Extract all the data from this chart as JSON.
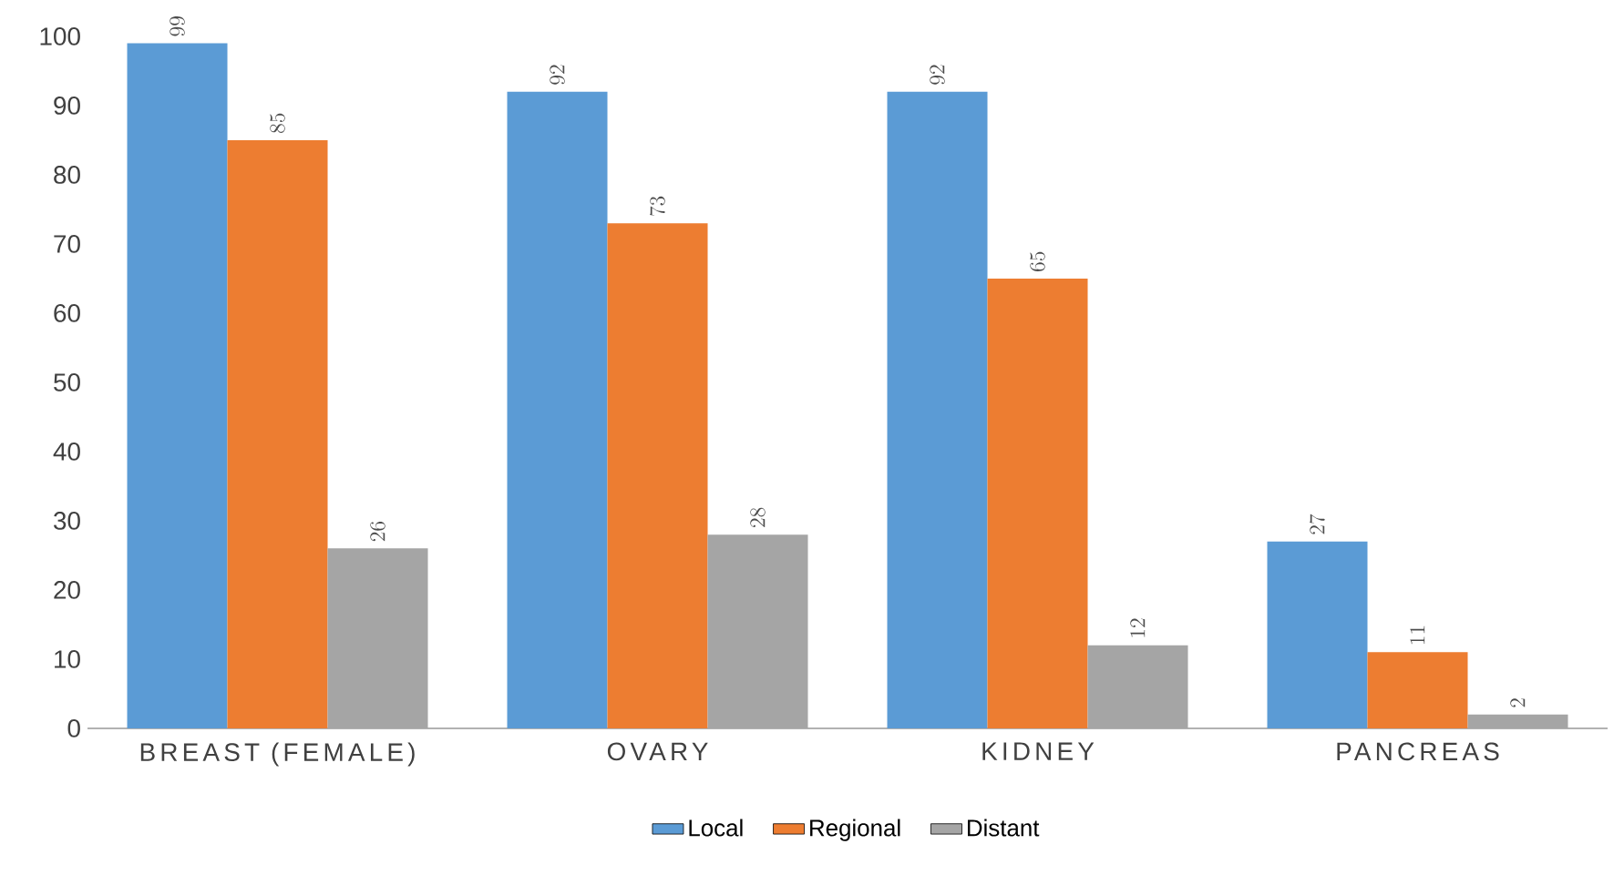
{
  "chart_data": {
    "type": "bar",
    "categories": [
      "BREAST (FEMALE)",
      "OVARY",
      "KIDNEY",
      "PANCREAS"
    ],
    "series": [
      {
        "name": "Local",
        "color": "#5b9bd5",
        "values": [
          99,
          92,
          92,
          27
        ]
      },
      {
        "name": "Regional",
        "color": "#ed7d31",
        "values": [
          85,
          73,
          65,
          11
        ]
      },
      {
        "name": "Distant",
        "color": "#a5a5a5",
        "values": [
          26,
          28,
          12,
          2
        ]
      }
    ],
    "ylim": [
      0,
      100
    ],
    "yticks": [
      0,
      10,
      20,
      30,
      40,
      50,
      60,
      70,
      80,
      90,
      100
    ],
    "data_labels": true,
    "legend": "bottom",
    "grid": false
  }
}
